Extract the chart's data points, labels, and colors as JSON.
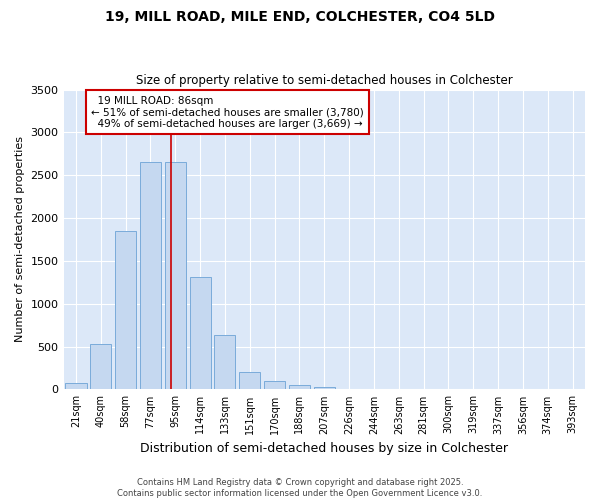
{
  "title1": "19, MILL ROAD, MILE END, COLCHESTER, CO4 5LD",
  "title2": "Size of property relative to semi-detached houses in Colchester",
  "xlabel": "Distribution of semi-detached houses by size in Colchester",
  "ylabel": "Number of semi-detached properties",
  "categories": [
    "21sqm",
    "40sqm",
    "58sqm",
    "77sqm",
    "95sqm",
    "114sqm",
    "133sqm",
    "151sqm",
    "170sqm",
    "188sqm",
    "207sqm",
    "226sqm",
    "244sqm",
    "263sqm",
    "281sqm",
    "300sqm",
    "319sqm",
    "337sqm",
    "356sqm",
    "374sqm",
    "393sqm"
  ],
  "values": [
    75,
    530,
    1850,
    2650,
    2650,
    1310,
    640,
    200,
    100,
    50,
    30,
    10,
    5,
    2,
    1,
    0,
    0,
    0,
    0,
    0,
    0
  ],
  "bar_color": "#c5d8f0",
  "bar_edge_color": "#7aabda",
  "property_label": "19 MILL ROAD: 86sqm",
  "pct_smaller": 51,
  "pct_larger": 49,
  "count_smaller": 3780,
  "count_larger": 3669,
  "red_line_color": "#cc0000",
  "annotation_box_edge": "#cc0000",
  "bg_color": "#dce8f8",
  "grid_color": "#ffffff",
  "footer1": "Contains HM Land Registry data © Crown copyright and database right 2025.",
  "footer2": "Contains public sector information licensed under the Open Government Licence v3.0.",
  "ylim": [
    0,
    3500
  ],
  "yticks": [
    0,
    500,
    1000,
    1500,
    2000,
    2500,
    3000,
    3500
  ],
  "red_line_x": 3.83
}
